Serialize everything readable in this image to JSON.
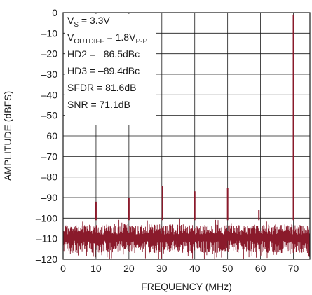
{
  "chart_data": {
    "type": "line",
    "xlabel": "FREQUENCY (MHz)",
    "ylabel": "AMPLITUDE (dBFS)",
    "xlim": [
      0,
      75
    ],
    "ylim": [
      -120,
      0
    ],
    "x_ticks": [
      "0",
      "10",
      "20",
      "30",
      "40",
      "50",
      "60",
      "70"
    ],
    "y_ticks": [
      "0",
      "–10",
      "–20",
      "–30",
      "–40",
      "–50",
      "–60",
      "–70",
      "–80",
      "–90",
      "–100",
      "–110",
      "–120"
    ],
    "grid": true,
    "series_color": "#8a1a2b",
    "noise_floor_dbfs": [
      -117,
      -100
    ],
    "annotations": [
      {
        "text": "V",
        "sub": "S",
        "rest": " = 3.3V"
      },
      {
        "text": "V",
        "sub": "OUTDIFF",
        "rest": " = 1.8V",
        "sub2": "P-P"
      },
      {
        "text": "HD2 = –86.5dBc"
      },
      {
        "text": "HD3 = –89.4dBc"
      },
      {
        "text": "SFDR = 81.6dB"
      },
      {
        "text": "SNR = 71.1dB"
      }
    ],
    "spurs": [
      {
        "freq": 70.0,
        "amplitude": -1
      },
      {
        "freq": 10.0,
        "amplitude": -92
      },
      {
        "freq": 20.0,
        "amplitude": -90
      },
      {
        "freq": 30.2,
        "amplitude": -84.5
      },
      {
        "freq": 40.0,
        "amplitude": -87
      },
      {
        "freq": 50.0,
        "amplitude": -85.5
      },
      {
        "freq": 59.5,
        "amplitude": -96
      }
    ]
  }
}
